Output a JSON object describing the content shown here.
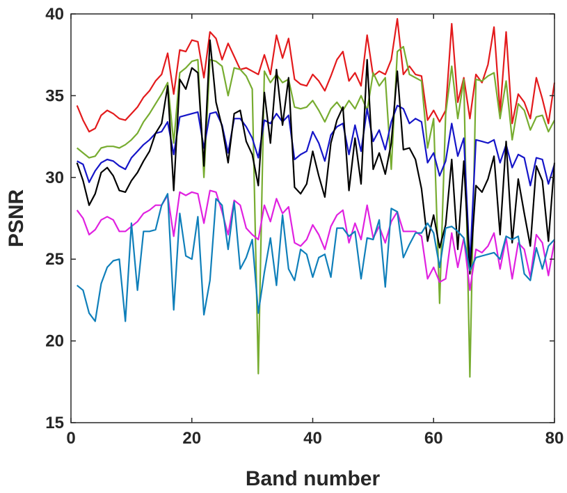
{
  "chart_data": {
    "type": "line",
    "xlabel": "Band number",
    "ylabel": "PSNR",
    "xlim": [
      0,
      80
    ],
    "ylim": [
      15,
      40
    ],
    "xticks": [
      "0",
      "20",
      "40",
      "60",
      "80"
    ],
    "yticks": [
      "15",
      "20",
      "25",
      "30",
      "35",
      "40"
    ],
    "grid": false,
    "legend": "none",
    "x": [
      1,
      2,
      3,
      4,
      5,
      6,
      7,
      8,
      9,
      10,
      11,
      12,
      13,
      14,
      15,
      16,
      17,
      18,
      19,
      20,
      21,
      22,
      23,
      24,
      25,
      26,
      27,
      28,
      29,
      30,
      31,
      32,
      33,
      34,
      35,
      36,
      37,
      38,
      39,
      40,
      41,
      42,
      43,
      44,
      45,
      46,
      47,
      48,
      49,
      50,
      51,
      52,
      53,
      54,
      55,
      56,
      57,
      58,
      59,
      60,
      61,
      62,
      63,
      64,
      65,
      66,
      67,
      68,
      69,
      70,
      71,
      72,
      73,
      74,
      75,
      76,
      77,
      78,
      79,
      80
    ],
    "series": [
      {
        "color": "#e31a1c",
        "values": [
          34.4,
          33.5,
          32.8,
          33.0,
          33.8,
          34.1,
          33.9,
          33.6,
          33.5,
          33.9,
          34.3,
          34.9,
          35.3,
          35.9,
          36.3,
          37.6,
          35.1,
          37.8,
          37.7,
          38.4,
          38.3,
          36.1,
          38.9,
          38.5,
          37.2,
          38.2,
          37.4,
          36.6,
          36.7,
          36.5,
          36.3,
          37.5,
          36.3,
          38.7,
          37.3,
          38.5,
          36.0,
          35.7,
          35.6,
          36.3,
          35.9,
          35.3,
          36.2,
          37.2,
          37.7,
          35.9,
          36.4,
          35.6,
          38.7,
          36.2,
          36.5,
          36.3,
          37.2,
          39.7,
          36.3,
          36.8,
          36.3,
          36.2,
          33.5,
          34.1,
          33.4,
          34.1,
          39.4,
          34.6,
          36.1,
          33.6,
          36.3,
          35.8,
          36.9,
          39.2,
          34.0,
          38.9,
          33.3,
          35.1,
          34.6,
          33.6,
          36.1,
          34.8,
          33.3,
          35.8
        ]
      },
      {
        "color": "#77ac30",
        "values": [
          31.8,
          31.5,
          31.2,
          31.3,
          31.8,
          31.9,
          31.9,
          31.8,
          32.0,
          32.3,
          32.7,
          33.4,
          33.9,
          34.5,
          35.1,
          35.8,
          32.1,
          36.4,
          36.7,
          37.1,
          37.2,
          30.0,
          37.2,
          37.1,
          36.8,
          35.0,
          36.7,
          36.6,
          36.2,
          35.4,
          18.0,
          36.5,
          35.8,
          36.3,
          35.8,
          36.0,
          34.3,
          34.2,
          34.3,
          34.7,
          34.1,
          33.4,
          34.2,
          34.6,
          34.1,
          34.7,
          34.2,
          35.0,
          34.1,
          36.4,
          35.6,
          36.1,
          30.5,
          37.7,
          38.0,
          36.3,
          36.1,
          35.9,
          31.8,
          33.6,
          22.3,
          33.9,
          36.8,
          33.6,
          36.0,
          17.8,
          36.0,
          35.9,
          36.2,
          36.4,
          33.6,
          35.9,
          32.3,
          34.5,
          34.1,
          32.9,
          33.7,
          33.8,
          32.8,
          33.5
        ]
      },
      {
        "color": "#1515c8",
        "values": [
          31.0,
          30.8,
          29.7,
          30.4,
          30.9,
          31.1,
          31.0,
          30.7,
          30.5,
          31.2,
          31.6,
          32.0,
          32.3,
          32.7,
          32.8,
          33.4,
          31.4,
          33.7,
          33.8,
          33.9,
          34.0,
          31.8,
          33.9,
          34.0,
          33.2,
          31.5,
          33.6,
          33.6,
          33.1,
          32.4,
          31.2,
          33.5,
          33.3,
          33.9,
          33.4,
          33.8,
          31.1,
          31.4,
          31.6,
          32.8,
          32.1,
          31.0,
          32.6,
          33.1,
          33.3,
          31.4,
          33.2,
          31.6,
          34.2,
          32.2,
          32.9,
          31.7,
          33.4,
          34.4,
          34.2,
          33.3,
          33.6,
          33.4,
          30.9,
          31.5,
          30.1,
          31.0,
          33.3,
          31.3,
          32.4,
          24.7,
          32.3,
          32.2,
          32.1,
          32.3,
          30.9,
          32.0,
          30.6,
          31.4,
          31.2,
          29.5,
          31.2,
          31.1,
          29.6,
          30.8
        ]
      },
      {
        "color": "#000000",
        "values": [
          30.9,
          29.8,
          28.3,
          29.0,
          30.3,
          30.6,
          30.1,
          29.2,
          29.1,
          29.8,
          30.3,
          31.0,
          31.6,
          32.7,
          33.3,
          35.6,
          29.2,
          36.0,
          35.4,
          36.7,
          36.4,
          30.7,
          38.4,
          34.6,
          33.1,
          30.9,
          33.9,
          34.1,
          32.2,
          31.4,
          29.5,
          35.2,
          32.1,
          36.6,
          33.2,
          36.1,
          29.4,
          29.0,
          29.6,
          31.6,
          30.1,
          28.8,
          32.1,
          33.5,
          34.3,
          29.2,
          32.4,
          29.6,
          37.2,
          30.5,
          31.5,
          30.2,
          32.1,
          36.5,
          31.7,
          31.8,
          31.1,
          29.3,
          26.1,
          27.7,
          25.7,
          27.1,
          31.1,
          25.6,
          31.0,
          24.1,
          29.5,
          29.1,
          29.9,
          31.3,
          26.5,
          32.2,
          26.0,
          29.9,
          27.8,
          25.8,
          30.7,
          29.8,
          26.1,
          30.9
        ]
      },
      {
        "color": "#e021e0",
        "values": [
          28.0,
          27.5,
          26.5,
          26.8,
          27.4,
          27.6,
          27.4,
          26.7,
          26.7,
          27.0,
          27.3,
          27.8,
          28.0,
          28.3,
          28.3,
          28.9,
          26.4,
          29.1,
          28.9,
          29.1,
          29.0,
          27.2,
          29.2,
          29.1,
          27.9,
          26.5,
          28.6,
          28.3,
          26.9,
          26.5,
          26.2,
          28.3,
          27.3,
          28.7,
          27.8,
          28.2,
          26.0,
          25.8,
          26.2,
          27.1,
          26.5,
          25.6,
          27.0,
          27.7,
          28.0,
          26.0,
          27.2,
          26.2,
          28.3,
          26.3,
          27.0,
          26.0,
          27.3,
          27.9,
          26.7,
          26.7,
          26.7,
          26.4,
          23.8,
          24.5,
          23.6,
          23.8,
          26.6,
          24.5,
          26.3,
          23.1,
          25.6,
          25.4,
          25.8,
          26.6,
          24.4,
          26.3,
          23.8,
          26.0,
          25.6,
          23.9,
          26.5,
          26.0,
          24.0,
          26.1
        ]
      },
      {
        "color": "#0f7fba",
        "values": [
          23.4,
          23.1,
          21.7,
          21.2,
          23.5,
          24.5,
          24.9,
          25.0,
          21.2,
          27.2,
          23.1,
          26.7,
          26.7,
          26.8,
          28.3,
          29.0,
          21.9,
          27.8,
          25.2,
          25.0,
          27.6,
          21.6,
          23.7,
          28.7,
          28.3,
          25.6,
          28.5,
          24.4,
          25.1,
          26.2,
          21.7,
          24.2,
          26.3,
          23.4,
          27.7,
          24.4,
          23.7,
          25.6,
          25.3,
          23.9,
          25.1,
          25.3,
          23.9,
          26.9,
          26.9,
          26.4,
          26.7,
          23.8,
          26.3,
          26.2,
          27.4,
          23.3,
          28.1,
          27.9,
          25.1,
          25.9,
          26.6,
          26.6,
          27.2,
          26.6,
          24.5,
          26.9,
          27.0,
          26.7,
          26.3,
          24.3,
          25.1,
          25.2,
          25.3,
          25.4,
          25.0,
          26.4,
          26.2,
          26.4,
          24.1,
          23.7,
          25.7,
          24.4,
          25.8,
          26.2
        ]
      }
    ]
  }
}
